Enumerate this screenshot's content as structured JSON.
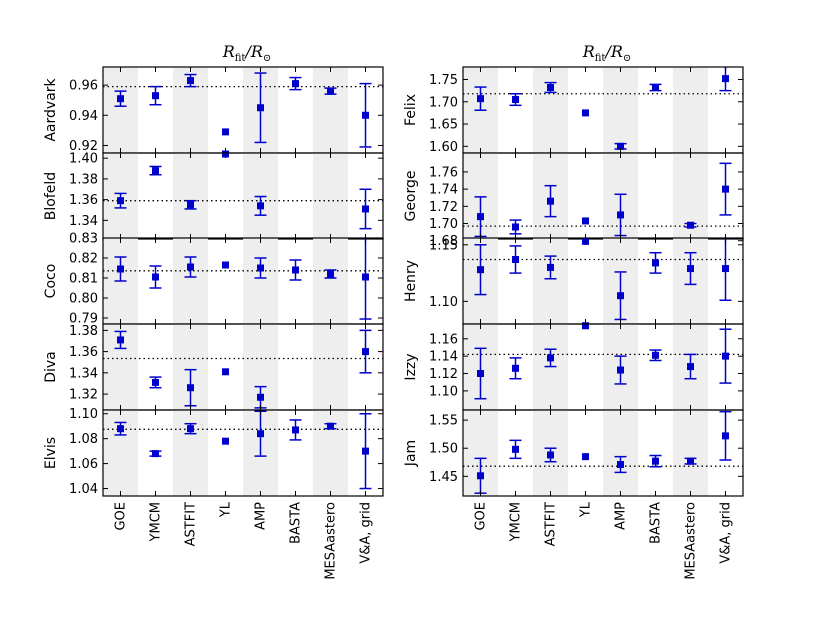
{
  "chart_data": {
    "type": "scatter",
    "title": "R_fit/R_sun",
    "title_parts": {
      "main": "R",
      "sub": "fit",
      "sep": "/R",
      "sun": "⊙"
    },
    "categories": [
      "GOE",
      "YMCM",
      "ASTFIT",
      "YL",
      "AMP",
      "BASTA",
      "MESAastero",
      "V&A, grid"
    ],
    "colors": {
      "marker": "#0000cc",
      "band": "#eeeeee",
      "reference": "#000000"
    },
    "columns": [
      {
        "panels": [
          {
            "star": "Aardvark",
            "ylim": [
              0.915,
              0.972
            ],
            "ticks": [
              0.92,
              0.94,
              0.96
            ],
            "tick_labels": [
              "0.92",
              "0.94",
              "0.96"
            ],
            "reference": 0.959,
            "values": [
              0.951,
              0.953,
              0.963,
              0.929,
              0.945,
              0.961,
              0.956,
              0.94
            ],
            "errors": [
              0.005,
              0.006,
              0.004,
              0.0,
              0.023,
              0.004,
              0.002,
              0.021
            ]
          },
          {
            "star": "Blofeld",
            "ylim": [
              1.322,
              1.405
            ],
            "ticks": [
              1.34,
              1.36,
              1.38,
              1.4
            ],
            "tick_labels": [
              "1.34",
              "1.36",
              "1.38",
              "1.40"
            ],
            "reference": 1.359,
            "values": [
              1.359,
              1.388,
              1.355,
              1.405,
              1.354,
              null,
              null,
              1.351
            ],
            "errors": [
              0.007,
              0.004,
              0.004,
              0.0,
              0.009,
              null,
              null,
              0.019
            ]
          },
          {
            "star": "Coco",
            "ylim": [
              0.787,
              0.83
            ],
            "ticks": [
              0.79,
              0.8,
              0.81,
              0.82,
              0.83
            ],
            "tick_labels": [
              "0.79",
              "0.80",
              "0.81",
              "0.82",
              "0.83"
            ],
            "reference": 0.8136,
            "values": [
              0.8145,
              0.8105,
              0.8155,
              0.8165,
              0.815,
              0.814,
              0.812,
              0.8105
            ],
            "errors": [
              0.006,
              0.0055,
              0.005,
              0.0,
              0.005,
              0.005,
              0.002,
              0.021
            ]
          },
          {
            "star": "Diva",
            "ylim": [
              1.305,
              1.386
            ],
            "ticks": [
              1.32,
              1.34,
              1.36,
              1.38
            ],
            "tick_labels": [
              "1.32",
              "1.34",
              "1.36",
              "1.38"
            ],
            "reference": 1.3535,
            "values": [
              1.371,
              1.331,
              1.326,
              1.341,
              1.317,
              null,
              null,
              1.36
            ],
            "errors": [
              0.008,
              0.005,
              0.017,
              0.0,
              0.01,
              null,
              null,
              0.02
            ]
          },
          {
            "star": "Elvis",
            "ylim": [
              1.034,
              1.103
            ],
            "ticks": [
              1.04,
              1.06,
              1.08,
              1.1
            ],
            "tick_labels": [
              "1.04",
              "1.06",
              "1.08",
              "1.10"
            ],
            "reference": 1.0875,
            "values": [
              1.088,
              1.068,
              1.088,
              1.078,
              1.084,
              1.087,
              1.09,
              1.07
            ],
            "errors": [
              0.005,
              0.002,
              0.004,
              0.0,
              0.018,
              0.008,
              0.002,
              0.03
            ]
          }
        ]
      },
      {
        "panels": [
          {
            "star": "Felix",
            "ylim": [
              1.585,
              1.778
            ],
            "ticks": [
              1.6,
              1.65,
              1.7,
              1.75
            ],
            "tick_labels": [
              "1.60",
              "1.65",
              "1.70",
              "1.75"
            ],
            "reference": 1.718,
            "values": [
              1.707,
              1.705,
              1.732,
              1.675,
              1.6,
              1.732,
              null,
              1.752
            ],
            "errors": [
              0.026,
              0.013,
              0.011,
              0.0,
              0.006,
              0.007,
              null,
              0.027
            ]
          },
          {
            "star": "George",
            "ylim": [
              1.682,
              1.782
            ],
            "ticks": [
              1.68,
              1.7,
              1.72,
              1.74,
              1.76
            ],
            "tick_labels": [
              "1.68",
              "1.70",
              "1.72",
              "1.74",
              "1.76"
            ],
            "reference": 1.697,
            "values": [
              1.708,
              1.696,
              1.726,
              1.703,
              1.71,
              null,
              1.698,
              1.74
            ],
            "errors": [
              0.023,
              0.008,
              0.018,
              0.0,
              0.024,
              null,
              0.002,
              0.03
            ]
          },
          {
            "star": "Henry",
            "ylim": [
              1.08,
              1.156
            ],
            "ticks": [
              1.1,
              1.15
            ],
            "tick_labels": [
              "1.10",
              "1.15"
            ],
            "reference": 1.137,
            "values": [
              1.128,
              1.137,
              1.13,
              1.153,
              1.105,
              1.134,
              1.129,
              1.129
            ],
            "errors": [
              0.022,
              0.012,
              0.01,
              0.0,
              0.021,
              0.009,
              0.014,
              0.028
            ]
          },
          {
            "star": "Izzy",
            "ylim": [
              1.078,
              1.177
            ],
            "ticks": [
              1.1,
              1.12,
              1.14,
              1.16
            ],
            "tick_labels": [
              "1.10",
              "1.12",
              "1.14",
              "1.16"
            ],
            "reference": 1.142,
            "values": [
              1.12,
              1.126,
              1.138,
              1.175,
              1.124,
              1.141,
              1.128,
              1.14
            ],
            "errors": [
              0.029,
              0.012,
              0.01,
              0.0,
              0.016,
              0.006,
              0.014,
              0.031
            ]
          },
          {
            "star": "Jam",
            "ylim": [
              1.415,
              1.568
            ],
            "ticks": [
              1.45,
              1.5,
              1.55
            ],
            "tick_labels": [
              "1.45",
              "1.50",
              "1.55"
            ],
            "reference": 1.468,
            "values": [
              1.451,
              1.498,
              1.488,
              1.485,
              1.471,
              1.477,
              1.477,
              1.522
            ],
            "errors": [
              0.031,
              0.016,
              0.012,
              0.0,
              0.014,
              0.01,
              0.005,
              0.043
            ]
          }
        ]
      }
    ]
  }
}
